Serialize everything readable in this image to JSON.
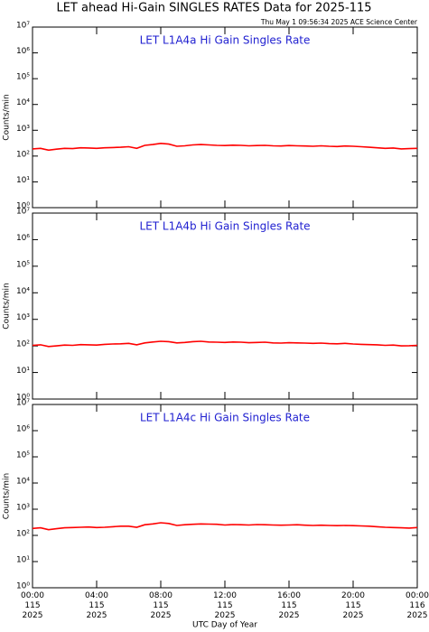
{
  "title": "LET ahead Hi-Gain SINGLES RATES Data for 2025-115",
  "subtitle": "Thu May  1 09:56:34 2025 ACE Science Center",
  "chart_data": [
    {
      "type": "line",
      "title": "LET L1A4a Hi Gain Singles Rate",
      "ylabel": "Counts/min",
      "log_y": true,
      "color": "#ff0000",
      "xlim": [
        0,
        24
      ],
      "xticks": [
        0,
        4,
        8,
        12,
        16,
        20,
        24
      ],
      "ylim": [
        1,
        10000000
      ],
      "yticks": [
        {
          "value": 1,
          "label": "10⁰"
        },
        {
          "value": 10,
          "label": "10¹"
        },
        {
          "value": 100,
          "label": "10²"
        },
        {
          "value": 1000,
          "label": "10³"
        },
        {
          "value": 10000,
          "label": "10⁴"
        },
        {
          "value": 100000,
          "label": "10⁵"
        },
        {
          "value": 1000000,
          "label": "10⁶"
        },
        {
          "value": 10000000,
          "label": "10⁷"
        }
      ],
      "x": [
        0,
        0.5,
        1,
        1.5,
        2,
        2.5,
        3,
        3.5,
        4,
        4.5,
        5,
        5.5,
        6,
        6.5,
        7,
        7.5,
        8,
        8.5,
        9,
        9.5,
        10,
        10.5,
        11,
        11.5,
        12,
        12.5,
        13,
        13.5,
        14,
        14.5,
        15,
        15.5,
        16,
        16.5,
        17,
        17.5,
        18,
        18.5,
        19,
        19.5,
        20,
        20.5,
        21,
        21.5,
        22,
        22.5,
        23,
        23.5,
        24
      ],
      "values": [
        190,
        200,
        170,
        185,
        200,
        195,
        210,
        205,
        200,
        210,
        215,
        220,
        230,
        200,
        260,
        280,
        310,
        290,
        240,
        250,
        270,
        280,
        270,
        260,
        255,
        265,
        260,
        250,
        255,
        260,
        250,
        245,
        255,
        250,
        245,
        240,
        250,
        240,
        235,
        245,
        240,
        230,
        220,
        210,
        200,
        205,
        190,
        195,
        200
      ]
    },
    {
      "type": "line",
      "title": "LET L1A4b Hi Gain Singles Rate",
      "ylabel": "Counts/min",
      "log_y": true,
      "color": "#ff0000",
      "xlim": [
        0,
        24
      ],
      "xticks": [
        0,
        4,
        8,
        12,
        16,
        20,
        24
      ],
      "ylim": [
        1,
        10000000
      ],
      "yticks": [
        {
          "value": 1,
          "label": "10⁰"
        },
        {
          "value": 10,
          "label": "10¹"
        },
        {
          "value": 100,
          "label": "10²"
        },
        {
          "value": 1000,
          "label": "10³"
        },
        {
          "value": 10000,
          "label": "10⁴"
        },
        {
          "value": 100000,
          "label": "10⁵"
        },
        {
          "value": 1000000,
          "label": "10⁶"
        },
        {
          "value": 10000000,
          "label": "10⁷"
        }
      ],
      "x": [
        0,
        0.5,
        1,
        1.5,
        2,
        2.5,
        3,
        3.5,
        4,
        4.5,
        5,
        5.5,
        6,
        6.5,
        7,
        7.5,
        8,
        8.5,
        9,
        9.5,
        10,
        10.5,
        11,
        11.5,
        12,
        12.5,
        13,
        13.5,
        14,
        14.5,
        15,
        15.5,
        16,
        16.5,
        17,
        17.5,
        18,
        18.5,
        19,
        19.5,
        20,
        20.5,
        21,
        21.5,
        22,
        22.5,
        23,
        23.5,
        24
      ],
      "values": [
        105,
        110,
        95,
        100,
        108,
        105,
        112,
        110,
        108,
        115,
        118,
        120,
        125,
        110,
        130,
        140,
        150,
        145,
        130,
        135,
        145,
        150,
        140,
        138,
        135,
        140,
        138,
        132,
        135,
        138,
        130,
        128,
        132,
        130,
        128,
        125,
        128,
        122,
        120,
        125,
        118,
        115,
        112,
        110,
        105,
        108,
        100,
        102,
        105
      ]
    },
    {
      "type": "line",
      "title": "LET L1A4c Hi Gain Singles Rate",
      "ylabel": "Counts/min",
      "xlabel": "UTC Day of Year",
      "log_y": true,
      "color": "#ff0000",
      "xlim": [
        0,
        24
      ],
      "xticks": [
        {
          "value": 0,
          "label": [
            "00:00",
            "115",
            "2025"
          ]
        },
        {
          "value": 4,
          "label": [
            "04:00",
            "115",
            "2025"
          ]
        },
        {
          "value": 8,
          "label": [
            "08:00",
            "115",
            "2025"
          ]
        },
        {
          "value": 12,
          "label": [
            "12:00",
            "115",
            "2025"
          ]
        },
        {
          "value": 16,
          "label": [
            "16:00",
            "115",
            "2025"
          ]
        },
        {
          "value": 20,
          "label": [
            "20:00",
            "115",
            "2025"
          ]
        },
        {
          "value": 24,
          "label": [
            "00:00",
            "116",
            "2025"
          ]
        }
      ],
      "ylim": [
        1,
        10000000
      ],
      "yticks": [
        {
          "value": 1,
          "label": "10⁰"
        },
        {
          "value": 10,
          "label": "10¹"
        },
        {
          "value": 100,
          "label": "10²"
        },
        {
          "value": 1000,
          "label": "10³"
        },
        {
          "value": 10000,
          "label": "10⁴"
        },
        {
          "value": 100000,
          "label": "10⁵"
        },
        {
          "value": 1000000,
          "label": "10⁶"
        },
        {
          "value": 10000000,
          "label": "10⁷"
        }
      ],
      "x": [
        0,
        0.5,
        1,
        1.5,
        2,
        2.5,
        3,
        3.5,
        4,
        4.5,
        5,
        5.5,
        6,
        6.5,
        7,
        7.5,
        8,
        8.5,
        9,
        9.5,
        10,
        10.5,
        11,
        11.5,
        12,
        12.5,
        13,
        13.5,
        14,
        14.5,
        15,
        15.5,
        16,
        16.5,
        17,
        17.5,
        18,
        18.5,
        19,
        19.5,
        20,
        20.5,
        21,
        21.5,
        22,
        22.5,
        23,
        23.5,
        24
      ],
      "values": [
        185,
        195,
        165,
        180,
        195,
        200,
        205,
        210,
        200,
        205,
        215,
        225,
        225,
        205,
        255,
        275,
        305,
        285,
        240,
        255,
        265,
        275,
        270,
        265,
        250,
        260,
        255,
        250,
        260,
        255,
        250,
        245,
        250,
        255,
        245,
        240,
        245,
        240,
        235,
        240,
        235,
        230,
        225,
        215,
        205,
        200,
        195,
        190,
        200
      ]
    }
  ]
}
